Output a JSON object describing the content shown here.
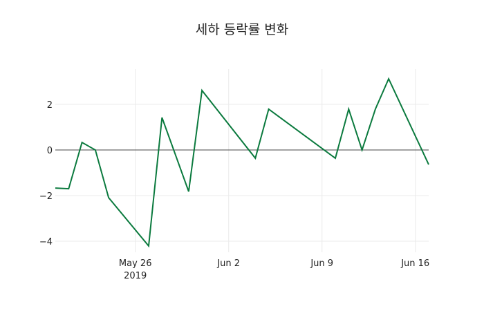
{
  "chart_data": {
    "type": "line",
    "title": "세하 등락률 변화",
    "xlabel": "",
    "ylabel": "",
    "x": [
      "2019-05-20",
      "2019-05-21",
      "2019-05-22",
      "2019-05-23",
      "2019-05-24",
      "2019-05-27",
      "2019-05-28",
      "2019-05-30",
      "2019-05-31",
      "2019-06-04",
      "2019-06-05",
      "2019-06-10",
      "2019-06-11",
      "2019-06-12",
      "2019-06-13",
      "2019-06-14",
      "2019-06-17"
    ],
    "series": [
      {
        "name": "등락률",
        "color": "#0b7a3e",
        "values": [
          -1.67,
          -1.7,
          0.33,
          0.0,
          -2.09,
          -4.21,
          1.42,
          -1.82,
          2.61,
          -0.36,
          1.79,
          -0.36,
          1.79,
          0.0,
          1.79,
          3.12,
          -0.64
        ]
      }
    ],
    "x_ticks": [
      {
        "date": "2019-05-26",
        "label": "May 26",
        "sublabel": "2019"
      },
      {
        "date": "2019-06-02",
        "label": "Jun 2",
        "sublabel": ""
      },
      {
        "date": "2019-06-09",
        "label": "Jun 9",
        "sublabel": ""
      },
      {
        "date": "2019-06-16",
        "label": "Jun 16",
        "sublabel": ""
      }
    ],
    "y_ticks": [
      2,
      0,
      -2,
      -4
    ],
    "y_tick_labels": [
      "2",
      "0",
      "−2",
      "−4"
    ],
    "ylim": [
      -4.4,
      3.6
    ],
    "xlim": [
      "2019-05-20",
      "2019-06-17"
    ],
    "grid": true,
    "zero_line": true,
    "legend": false
  }
}
